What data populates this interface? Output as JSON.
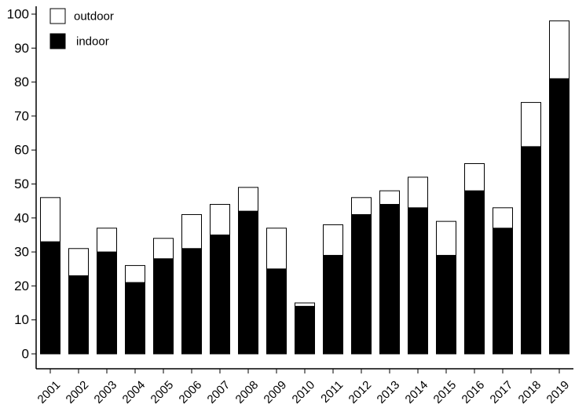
{
  "chart_data": {
    "type": "bar",
    "stacked": true,
    "categories": [
      "2001",
      "2002",
      "2003",
      "2004",
      "2005",
      "2006",
      "2007",
      "2008",
      "2009",
      "2010",
      "2011",
      "2012",
      "2013",
      "2014",
      "2015",
      "2016",
      "2017",
      "2018",
      "2019"
    ],
    "series": [
      {
        "name": "indoor",
        "color": "#000000",
        "values": [
          33,
          23,
          30,
          21,
          28,
          31,
          35,
          42,
          25,
          14,
          29,
          41,
          44,
          43,
          29,
          48,
          37,
          61,
          81
        ]
      },
      {
        "name": "outdoor",
        "color": "#ffffff",
        "values": [
          13,
          8,
          7,
          5,
          6,
          10,
          9,
          7,
          12,
          1,
          9,
          5,
          4,
          9,
          10,
          8,
          6,
          13,
          17
        ]
      }
    ],
    "yticks": [
      0,
      10,
      20,
      30,
      40,
      50,
      60,
      70,
      80,
      90,
      100
    ],
    "ylim": [
      0,
      100
    ],
    "legend": {
      "position": "top-left",
      "entries": [
        "outdoor",
        "indoor"
      ]
    },
    "grid": false,
    "title": "",
    "xlabel": "",
    "ylabel": ""
  }
}
